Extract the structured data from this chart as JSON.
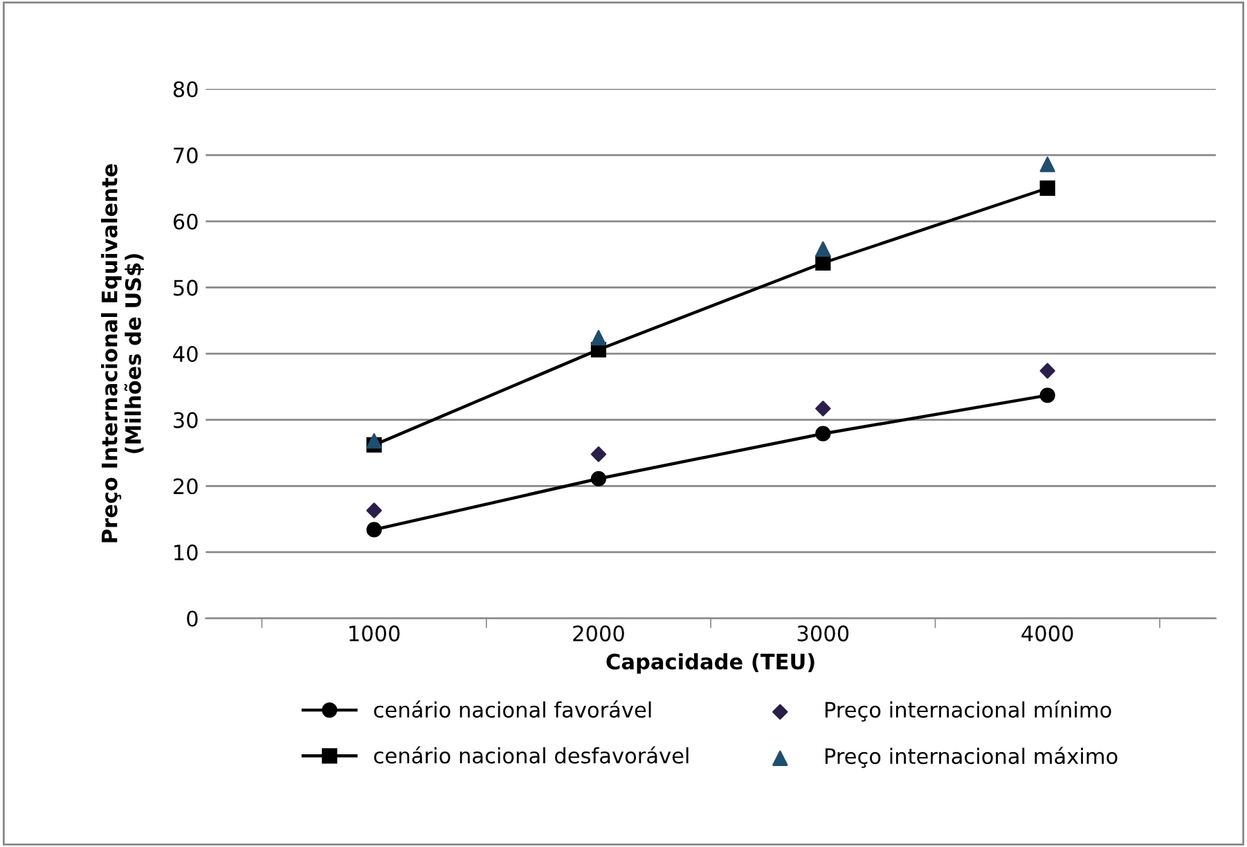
{
  "chart_data": {
    "type": "line",
    "xlabel": "Capacidade (TEU)",
    "ylabel": "Preço Internacional Equivalente\n(Milhões de US$)",
    "categories": [
      "1000",
      "2000",
      "3000",
      "4000"
    ],
    "series": [
      {
        "name": "cenário nacional favorável",
        "color": "#000000",
        "marker": "circle",
        "values": [
          13.4,
          21.1,
          27.9,
          33.7
        ]
      },
      {
        "name": "cenário nacional desfavorável",
        "color": "#000000",
        "marker": "square",
        "values": [
          26.2,
          40.6,
          53.7,
          65.0
        ]
      },
      {
        "name": "Preço internacional mínimo",
        "type": "scatter",
        "color": "#2a1f4a",
        "marker": "diamond",
        "values": [
          16.3,
          24.8,
          31.7,
          37.4
        ]
      },
      {
        "name": "Preço internacional máximo",
        "type": "scatter",
        "color": "#1f4e6e",
        "marker": "triangle",
        "values": [
          26.8,
          42.4,
          55.8,
          68.6
        ]
      }
    ],
    "ylim": [
      0,
      80
    ],
    "yticks": [
      0,
      10,
      20,
      30,
      40,
      50,
      60,
      70,
      80
    ],
    "grid": "y",
    "legend": "bottom"
  }
}
